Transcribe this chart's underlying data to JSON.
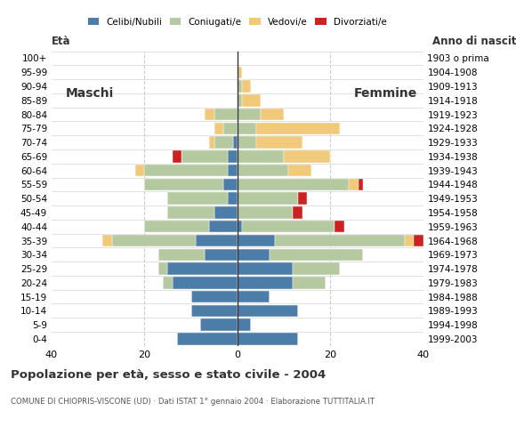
{
  "age_groups": [
    "0-4",
    "5-9",
    "10-14",
    "15-19",
    "20-24",
    "25-29",
    "30-34",
    "35-39",
    "40-44",
    "45-49",
    "50-54",
    "55-59",
    "60-64",
    "65-69",
    "70-74",
    "75-79",
    "80-84",
    "85-89",
    "90-94",
    "95-99",
    "100+"
  ],
  "birth_years": [
    "1999-2003",
    "1994-1998",
    "1989-1993",
    "1984-1988",
    "1979-1983",
    "1974-1978",
    "1969-1973",
    "1964-1968",
    "1959-1963",
    "1954-1958",
    "1949-1953",
    "1944-1948",
    "1939-1943",
    "1934-1938",
    "1929-1933",
    "1924-1928",
    "1919-1923",
    "1914-1918",
    "1909-1913",
    "1904-1908",
    "1903 o prima"
  ],
  "colors": {
    "celibi": "#4c7da8",
    "coniugati": "#b5c9a0",
    "vedovi": "#f0c97a",
    "divorziati": "#cc2222"
  },
  "males": {
    "celibi": [
      13,
      8,
      10,
      10,
      14,
      15,
      7,
      9,
      6,
      5,
      2,
      3,
      2,
      2,
      1,
      0,
      0,
      0,
      0,
      0,
      0
    ],
    "coniugati": [
      0,
      0,
      0,
      0,
      2,
      2,
      10,
      18,
      14,
      10,
      13,
      17,
      18,
      10,
      4,
      3,
      5,
      0,
      0,
      0,
      0
    ],
    "vedovi": [
      0,
      0,
      0,
      0,
      0,
      0,
      0,
      2,
      0,
      0,
      0,
      0,
      2,
      0,
      1,
      2,
      2,
      0,
      0,
      0,
      0
    ],
    "divorziati": [
      0,
      0,
      0,
      0,
      0,
      0,
      0,
      0,
      0,
      0,
      0,
      0,
      0,
      2,
      0,
      0,
      0,
      0,
      0,
      0,
      0
    ]
  },
  "females": {
    "celibi": [
      13,
      3,
      13,
      7,
      12,
      12,
      7,
      8,
      1,
      0,
      0,
      0,
      0,
      0,
      0,
      0,
      0,
      0,
      0,
      0,
      0
    ],
    "coniugati": [
      0,
      0,
      0,
      0,
      7,
      10,
      20,
      28,
      20,
      12,
      13,
      24,
      11,
      10,
      4,
      4,
      5,
      1,
      1,
      0,
      0
    ],
    "vedovi": [
      0,
      0,
      0,
      0,
      0,
      0,
      0,
      2,
      0,
      0,
      0,
      2,
      5,
      10,
      10,
      18,
      5,
      4,
      2,
      1,
      0
    ],
    "divorziati": [
      0,
      0,
      0,
      0,
      0,
      0,
      0,
      2,
      2,
      2,
      2,
      1,
      0,
      0,
      0,
      0,
      0,
      0,
      0,
      0,
      0
    ]
  },
  "title": "Popolazione per età, sesso e stato civile - 2004",
  "subtitle": "COMUNE DI CHIOPRIS-VISCONE (UD) · Dati ISTAT 1° gennaio 2004 · Elaborazione TUTTITALIA.IT",
  "maschi_label": "Maschi",
  "femmine_label": "Femmine",
  "eta_label": "Età",
  "anno_label": "Anno di nascita",
  "xlim": 40,
  "background": "#ffffff",
  "grid_color": "#cccccc",
  "spine_color": "#aaaaaa"
}
